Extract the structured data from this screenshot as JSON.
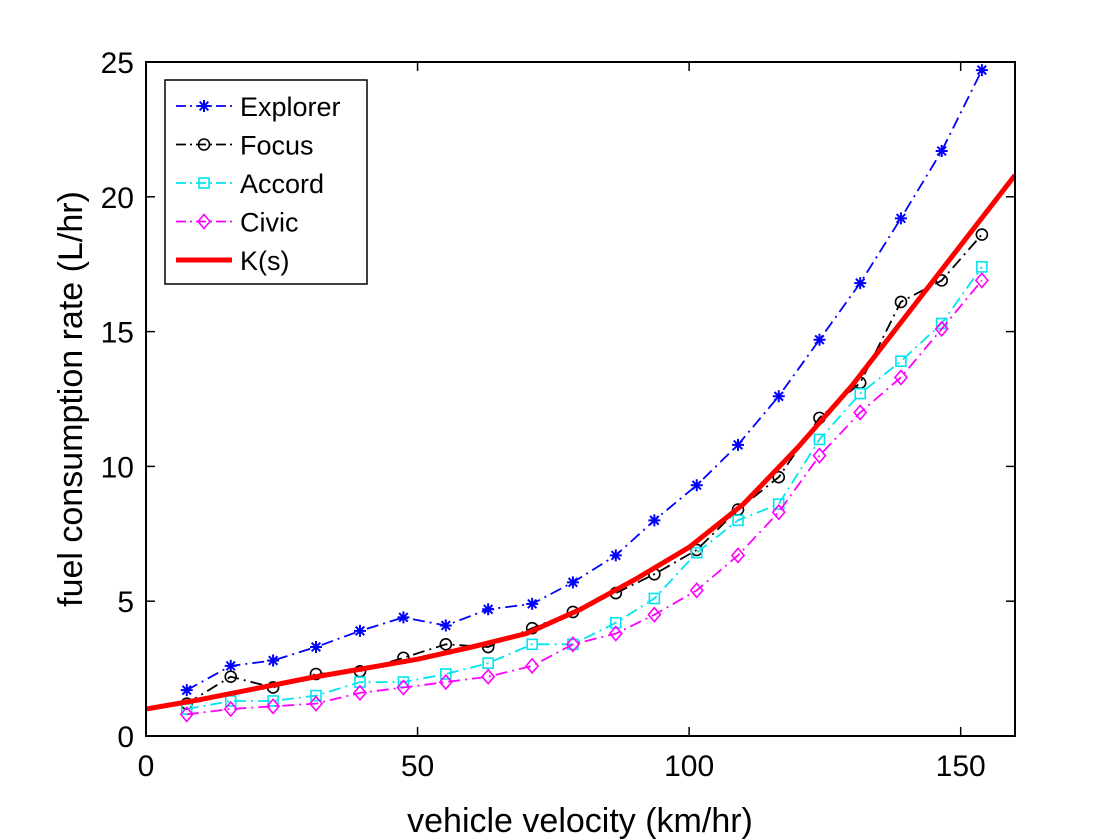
{
  "chart_data": {
    "type": "line",
    "title": "",
    "xlabel": "vehicle velocity (km/hr)",
    "ylabel": "fuel consumption rate (L/hr)",
    "xlim": [
      0,
      160
    ],
    "ylim": [
      0,
      25
    ],
    "xticks": [
      0,
      50,
      100,
      150
    ],
    "yticks": [
      0,
      5,
      10,
      15,
      20,
      25
    ],
    "grid": false,
    "legend_position": "top-left",
    "x": [
      8,
      16,
      24,
      32,
      40,
      48,
      56,
      64,
      72,
      79,
      87,
      95,
      103,
      111,
      119,
      127,
      135,
      142,
      150,
      158
    ],
    "series": [
      {
        "name": "Explorer",
        "color": "#0000ff",
        "line_style": "dash-dot",
        "marker": "asterisk",
        "x": [
          7.5,
          15.6,
          23.4,
          31.3,
          39.4,
          47.4,
          55.2,
          63.0,
          71.1,
          78.6,
          86.5,
          93.6,
          101.4,
          109.0,
          116.5,
          124.0,
          131.5,
          139.0,
          146.5,
          153.9
        ],
        "values": [
          1.7,
          2.6,
          2.8,
          3.3,
          3.9,
          4.4,
          4.1,
          4.7,
          4.9,
          5.7,
          6.7,
          8.0,
          9.3,
          10.8,
          12.6,
          14.7,
          16.8,
          19.2,
          21.7,
          24.7
        ]
      },
      {
        "name": "Focus",
        "color": "#000000",
        "line_style": "dash-dot",
        "marker": "circle",
        "x": [
          7.5,
          15.6,
          23.4,
          31.3,
          39.4,
          47.4,
          55.2,
          63.0,
          71.1,
          78.6,
          86.5,
          93.6,
          101.4,
          109.0,
          116.5,
          124.0,
          131.5,
          139.0,
          146.5,
          153.9
        ],
        "values": [
          1.2,
          2.2,
          1.8,
          2.3,
          2.4,
          2.9,
          3.4,
          3.3,
          4.0,
          4.6,
          5.3,
          6.0,
          6.9,
          8.4,
          9.6,
          11.8,
          13.1,
          16.1,
          16.9,
          18.6
        ]
      },
      {
        "name": "Accord",
        "color": "#00e5ee",
        "line_style": "dash-dot",
        "marker": "square",
        "x": [
          7.5,
          15.6,
          23.4,
          31.3,
          39.4,
          47.4,
          55.2,
          63.0,
          71.1,
          78.6,
          86.5,
          93.6,
          101.4,
          109.0,
          116.5,
          124.0,
          131.5,
          139.0,
          146.5,
          153.9
        ],
        "values": [
          1.0,
          1.3,
          1.3,
          1.5,
          2.0,
          2.0,
          2.3,
          2.7,
          3.4,
          3.4,
          4.2,
          5.1,
          6.8,
          8.0,
          8.6,
          11.0,
          12.7,
          13.9,
          15.3,
          17.4
        ]
      },
      {
        "name": "Civic",
        "color": "#ff00ff",
        "line_style": "dash-dot",
        "marker": "diamond",
        "x": [
          7.5,
          15.6,
          23.4,
          31.3,
          39.4,
          47.4,
          55.2,
          63.0,
          71.1,
          78.6,
          86.5,
          93.6,
          101.4,
          109.0,
          116.5,
          124.0,
          131.5,
          139.0,
          146.5,
          153.9
        ],
        "values": [
          0.8,
          1.0,
          1.1,
          1.2,
          1.6,
          1.8,
          2.0,
          2.2,
          2.6,
          3.4,
          3.8,
          4.5,
          5.4,
          6.7,
          8.3,
          10.4,
          12.0,
          13.3,
          15.1,
          16.9
        ]
      },
      {
        "name": "K(s)",
        "color": "#ff0000",
        "line_style": "solid",
        "marker": "none",
        "x": [
          0,
          10,
          20,
          30,
          40,
          50,
          60,
          70,
          80,
          90,
          100,
          110,
          120,
          130,
          140,
          150,
          160
        ],
        "values": [
          1.0,
          1.35,
          1.75,
          2.15,
          2.5,
          2.85,
          3.3,
          3.8,
          4.7,
          5.8,
          7.0,
          8.6,
          10.7,
          13.0,
          15.6,
          18.2,
          20.8
        ]
      }
    ]
  }
}
